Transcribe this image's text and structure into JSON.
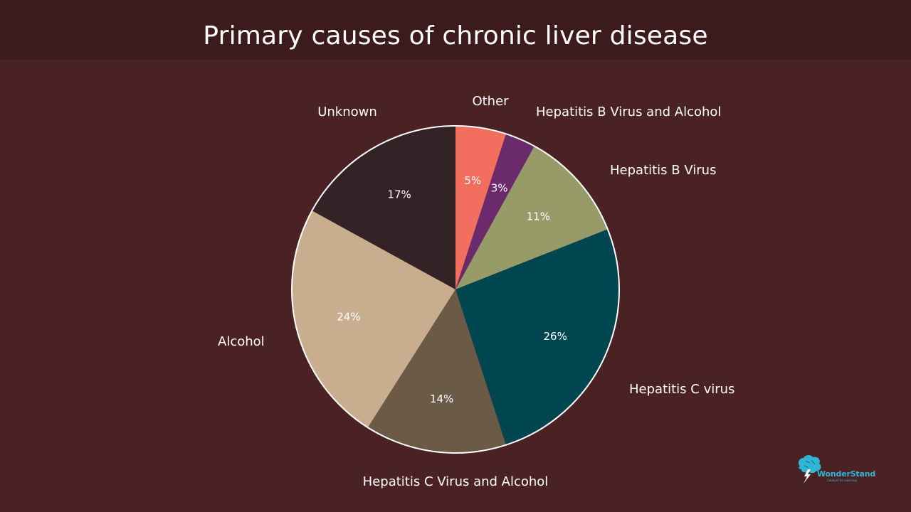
{
  "chart_data": {
    "type": "pie",
    "title": "Primary causes of chronic liver disease",
    "start_angle_deg": 0,
    "direction": "clockwise",
    "slices": [
      {
        "label": "Other",
        "value": 5,
        "display": "5%",
        "color": "#f26f60"
      },
      {
        "label": "Hepatitis B Virus and Alcohol",
        "value": 3,
        "display": "3%",
        "color": "#6b2a6b"
      },
      {
        "label": "Hepatitis B Virus",
        "value": 11,
        "display": "11%",
        "color": "#969b68"
      },
      {
        "label": "Hepatitis C virus",
        "value": 26,
        "display": "26%",
        "color": "#004651"
      },
      {
        "label": "Hepatitis C Virus and Alcohol",
        "value": 14,
        "display": "14%",
        "color": "#6b5a46"
      },
      {
        "label": "Alcohol",
        "value": 24,
        "display": "24%",
        "color": "#c8ae8e"
      },
      {
        "label": "Unknown",
        "value": 17,
        "display": "17%",
        "color": "#342326"
      }
    ],
    "border_color": "#ffffff",
    "label_color": "#ffffff"
  },
  "colors": {
    "background": "#4a2224",
    "title_bar": "#3d1b1d",
    "logo": "#2fb6d6"
  },
  "logo": {
    "name": "WonderStand",
    "tagline": "Catalyst for Learning",
    "icon": "brain-lightning-icon"
  }
}
